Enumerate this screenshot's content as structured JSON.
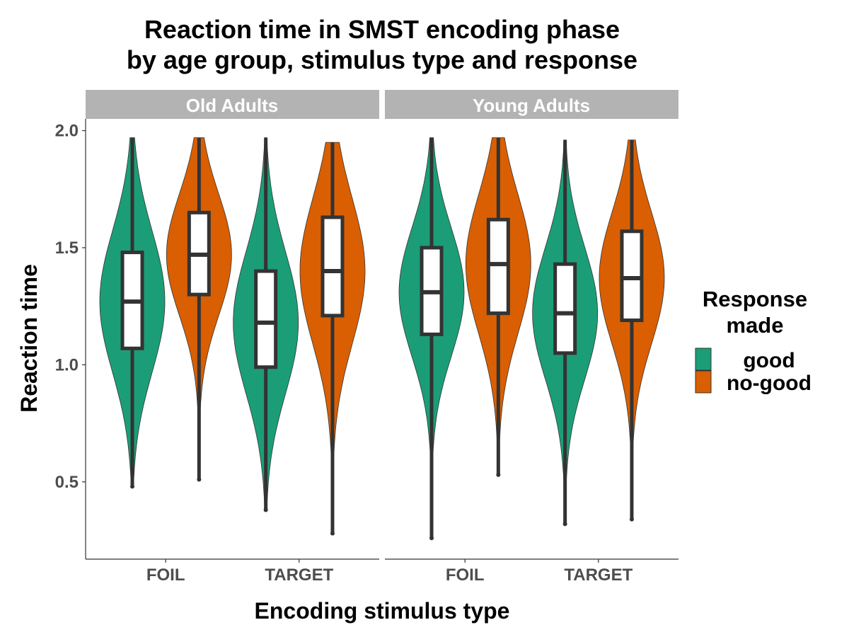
{
  "chart_data": {
    "type": "violin",
    "title_lines": [
      "Reaction time in SMST encoding phase",
      "by age group, stimulus type and response"
    ],
    "xlabel": "Encoding stimulus type",
    "ylabel": "Reaction time",
    "ylim": [
      0.17,
      2.05
    ],
    "y_ticks": [
      0.5,
      1.0,
      1.5,
      2.0
    ],
    "y_tick_labels": [
      "0.5",
      "1.0",
      "1.5",
      "2.0"
    ],
    "categories": [
      "FOIL",
      "TARGET"
    ],
    "legend": {
      "title_lines": [
        "Response",
        "made"
      ],
      "placement": "right",
      "items": [
        {
          "label": "good",
          "color": "#1b9e77"
        },
        {
          "label": "no-good",
          "color": "#d95f02"
        }
      ]
    },
    "panels": [
      {
        "strip": "Old Adults",
        "groups": [
          {
            "category": "FOIL",
            "response": "good",
            "min": 0.48,
            "q1": 1.07,
            "median": 1.27,
            "q3": 1.48,
            "max": 1.97
          },
          {
            "category": "FOIL",
            "response": "no-good",
            "min": 0.51,
            "q1": 1.3,
            "median": 1.47,
            "q3": 1.65,
            "max": 1.97
          },
          {
            "category": "TARGET",
            "response": "good",
            "min": 0.38,
            "q1": 0.99,
            "median": 1.18,
            "q3": 1.4,
            "max": 1.97
          },
          {
            "category": "TARGET",
            "response": "no-good",
            "min": 0.28,
            "q1": 1.21,
            "median": 1.4,
            "q3": 1.63,
            "max": 1.95
          }
        ]
      },
      {
        "strip": "Young Adults",
        "groups": [
          {
            "category": "FOIL",
            "response": "good",
            "min": 0.26,
            "q1": 1.13,
            "median": 1.31,
            "q3": 1.5,
            "max": 1.97
          },
          {
            "category": "FOIL",
            "response": "no-good",
            "min": 0.53,
            "q1": 1.22,
            "median": 1.43,
            "q3": 1.62,
            "max": 1.97
          },
          {
            "category": "TARGET",
            "response": "good",
            "min": 0.32,
            "q1": 1.05,
            "median": 1.22,
            "q3": 1.43,
            "max": 1.96
          },
          {
            "category": "TARGET",
            "response": "no-good",
            "min": 0.34,
            "q1": 1.19,
            "median": 1.37,
            "q3": 1.57,
            "max": 1.96
          }
        ]
      }
    ]
  }
}
